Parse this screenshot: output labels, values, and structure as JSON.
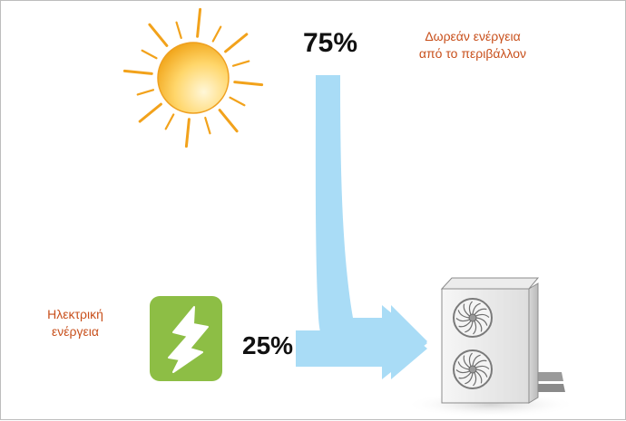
{
  "labels": {
    "free_energy_percent": "75%",
    "electric_energy_percent": "25%",
    "free_energy_line1": "Δωρεάν ενέργεια",
    "free_energy_line2": "από το περιβάλλον",
    "electric_energy_line1": "Ηλεκτρική",
    "electric_energy_line2": "ενέργεια"
  },
  "colors": {
    "arrow": "#a9dcf6",
    "caption": "#c8501c",
    "bolt_tile": "#8dbe45",
    "sun_ray": "#f2a21b"
  },
  "icons": {
    "sun": "sun-icon",
    "bolt": "lightning-bolt-icon",
    "unit": "heat-pump-unit-icon"
  }
}
